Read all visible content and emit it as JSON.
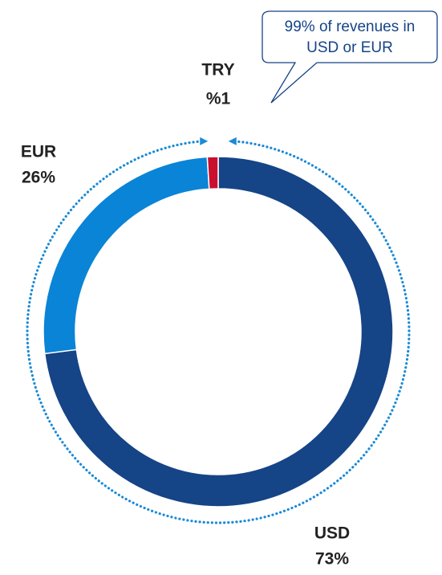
{
  "chart_data": {
    "type": "donut",
    "categories": [
      "USD",
      "EUR",
      "TRY"
    ],
    "values": [
      73,
      26,
      1
    ],
    "value_labels": [
      "73%",
      "26%",
      "%1"
    ],
    "colors": [
      "#154487",
      "#0a84d6",
      "#c8102e"
    ],
    "annotation": [
      "99% of revenues in",
      "USD or EUR"
    ]
  }
}
